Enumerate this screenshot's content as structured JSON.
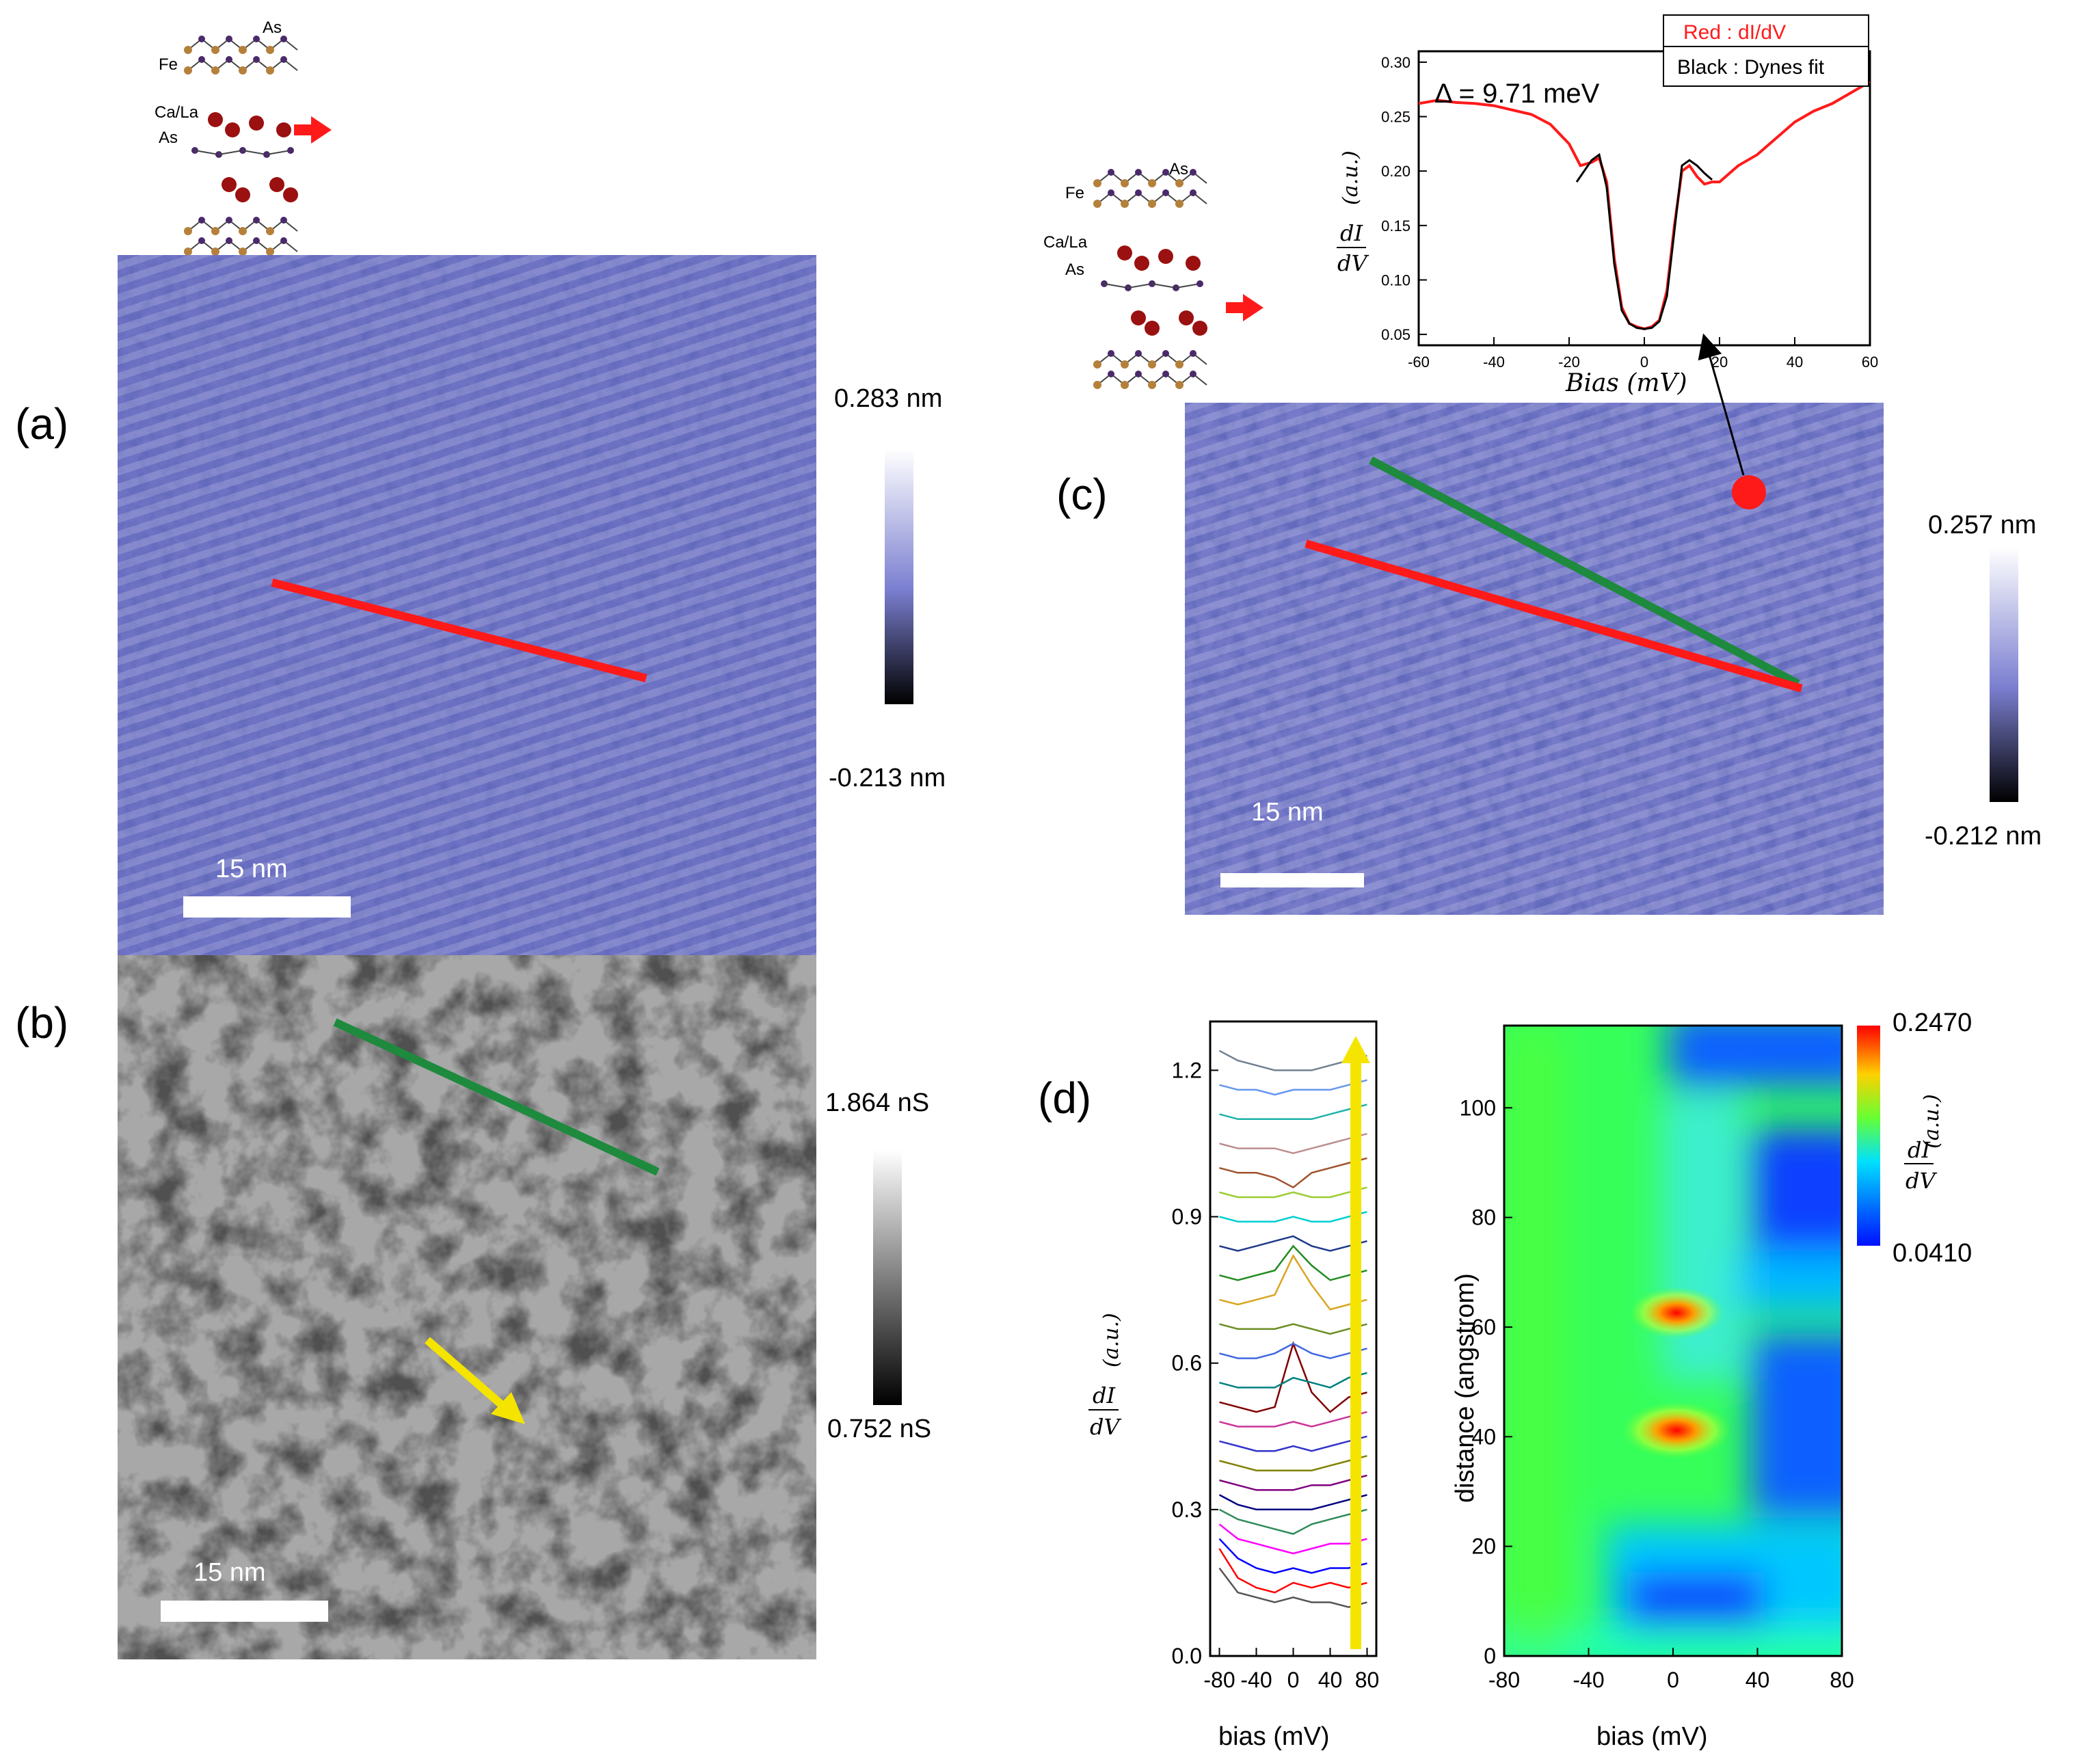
{
  "panels": {
    "a": {
      "label": "(a)",
      "cb_max": "0.283  nm",
      "cb_min": "-0.213  nm",
      "scale": "15  nm"
    },
    "b": {
      "label": "(b)",
      "cb_max": "1.864  nS",
      "cb_min": "0.752  nS",
      "scale": "15  nm"
    },
    "c": {
      "label": "(c)",
      "cb_max": "0.257  nm",
      "cb_min": "-0.212  nm",
      "scale": "15 nm"
    },
    "d": {
      "label": "(d)"
    }
  },
  "crystal": {
    "fe": "Fe",
    "as_top": "As",
    "cala": "Ca/La",
    "as_mid": "As"
  },
  "colors": {
    "topo": "#6f73c4",
    "red_line": "#ff1a1a",
    "green_line": "#1e8a3e",
    "yellow_arrow": "#f5e400",
    "cmap_low": "#1030ff",
    "cmap_high": "#ff1010"
  },
  "inset": {
    "legend_red": "Red : dI/dV",
    "legend_black": "Black : Dynes fit",
    "gap": "Δ = 9.71 meV",
    "ylabel_num": "dI",
    "ylabel_den": "dV",
    "ylabel_unit": "(a.u.)",
    "xlabel": "Bias (mV)"
  },
  "line_plot": {
    "ylabel_num": "dI",
    "ylabel_den": "dV",
    "ylabel_unit": "(a.u.)",
    "xlabel": "bias (mV)"
  },
  "map": {
    "ylabel": "distance (angstrom)",
    "xlabel": "bias (mV)",
    "cb_max": "0.2470",
    "cb_min": "0.0410",
    "cb_label_num": "dI",
    "cb_label_den": "dV",
    "cb_label_unit": "(a.u.)"
  },
  "chart_data": [
    {
      "type": "line",
      "xlim": [
        -60,
        60
      ],
      "ylim": [
        0.04,
        0.31
      ],
      "x_ticks": [
        -60,
        -40,
        -20,
        0,
        20,
        40,
        60
      ],
      "y_ticks": [
        0.05,
        0.1,
        0.15,
        0.2,
        0.25,
        0.3
      ],
      "series": [
        {
          "name": "dI/dV",
          "color": "#ff1a1a",
          "x": [
            -60,
            -55,
            -50,
            -45,
            -40,
            -35,
            -30,
            -25,
            -20,
            -17,
            -14,
            -12,
            -10,
            -8,
            -6,
            -4,
            -2,
            0,
            2,
            4,
            6,
            8,
            10,
            12,
            14,
            16,
            18,
            20,
            25,
            30,
            35,
            40,
            45,
            50,
            55,
            60
          ],
          "y": [
            0.262,
            0.265,
            0.263,
            0.262,
            0.26,
            0.256,
            0.252,
            0.243,
            0.225,
            0.205,
            0.208,
            0.212,
            0.19,
            0.12,
            0.075,
            0.06,
            0.057,
            0.055,
            0.057,
            0.063,
            0.09,
            0.15,
            0.2,
            0.205,
            0.195,
            0.188,
            0.19,
            0.19,
            0.205,
            0.215,
            0.23,
            0.245,
            0.255,
            0.262,
            0.272,
            0.282
          ]
        },
        {
          "name": "Dynes fit",
          "color": "#000000",
          "x": [
            -18,
            -16,
            -14,
            -12,
            -10,
            -8,
            -6,
            -4,
            -2,
            0,
            2,
            4,
            6,
            8,
            10,
            12,
            14,
            16,
            18
          ],
          "y": [
            0.19,
            0.2,
            0.21,
            0.215,
            0.185,
            0.115,
            0.072,
            0.06,
            0.056,
            0.055,
            0.056,
            0.062,
            0.085,
            0.145,
            0.205,
            0.21,
            0.205,
            0.198,
            0.192
          ]
        }
      ]
    },
    {
      "type": "line",
      "xlim": [
        -90,
        90
      ],
      "ylim": [
        0.0,
        1.3
      ],
      "x_ticks": [
        -80,
        -40,
        0,
        40,
        80
      ],
      "y_ticks": [
        0.0,
        0.3,
        0.6,
        0.9,
        1.2
      ],
      "x": [
        -80,
        -60,
        -40,
        -20,
        0,
        20,
        40,
        60,
        80
      ],
      "series": [
        {
          "color": "#555555",
          "values": [
            0.18,
            0.13,
            0.12,
            0.11,
            0.12,
            0.11,
            0.11,
            0.1,
            0.11
          ]
        },
        {
          "color": "#ff0000",
          "values": [
            0.22,
            0.16,
            0.14,
            0.13,
            0.15,
            0.14,
            0.15,
            0.14,
            0.15
          ]
        },
        {
          "color": "#0000ff",
          "values": [
            0.24,
            0.2,
            0.18,
            0.17,
            0.18,
            0.17,
            0.18,
            0.18,
            0.19
          ]
        },
        {
          "color": "#ff00ff",
          "values": [
            0.27,
            0.24,
            0.23,
            0.22,
            0.21,
            0.22,
            0.23,
            0.23,
            0.24
          ]
        },
        {
          "color": "#2e8b57",
          "values": [
            0.3,
            0.28,
            0.27,
            0.26,
            0.25,
            0.27,
            0.28,
            0.29,
            0.3
          ]
        },
        {
          "color": "#000080",
          "values": [
            0.33,
            0.31,
            0.3,
            0.3,
            0.3,
            0.3,
            0.31,
            0.32,
            0.33
          ]
        },
        {
          "color": "#800080",
          "values": [
            0.36,
            0.35,
            0.34,
            0.34,
            0.34,
            0.35,
            0.35,
            0.36,
            0.37
          ]
        },
        {
          "color": "#808000",
          "values": [
            0.4,
            0.39,
            0.38,
            0.38,
            0.38,
            0.38,
            0.39,
            0.4,
            0.41
          ]
        },
        {
          "color": "#3333cc",
          "values": [
            0.44,
            0.43,
            0.42,
            0.42,
            0.43,
            0.42,
            0.43,
            0.44,
            0.45
          ]
        },
        {
          "color": "#cc3399",
          "values": [
            0.48,
            0.47,
            0.47,
            0.47,
            0.48,
            0.47,
            0.48,
            0.49,
            0.5
          ]
        },
        {
          "color": "#800000",
          "values": [
            0.52,
            0.51,
            0.5,
            0.51,
            0.64,
            0.54,
            0.5,
            0.53,
            0.54
          ]
        },
        {
          "color": "#008080",
          "values": [
            0.56,
            0.55,
            0.55,
            0.55,
            0.57,
            0.56,
            0.55,
            0.57,
            0.58
          ]
        },
        {
          "color": "#4169e1",
          "values": [
            0.62,
            0.61,
            0.61,
            0.62,
            0.64,
            0.62,
            0.61,
            0.62,
            0.63
          ]
        },
        {
          "color": "#6b8e23",
          "values": [
            0.68,
            0.67,
            0.67,
            0.67,
            0.68,
            0.67,
            0.66,
            0.67,
            0.68
          ]
        },
        {
          "color": "#daa520",
          "values": [
            0.73,
            0.72,
            0.73,
            0.74,
            0.82,
            0.76,
            0.71,
            0.72,
            0.73
          ]
        },
        {
          "color": "#228b22",
          "values": [
            0.78,
            0.77,
            0.78,
            0.79,
            0.84,
            0.8,
            0.77,
            0.78,
            0.79
          ]
        },
        {
          "color": "#1e3a8a",
          "values": [
            0.84,
            0.83,
            0.84,
            0.85,
            0.86,
            0.84,
            0.83,
            0.84,
            0.85
          ]
        },
        {
          "color": "#00ced1",
          "values": [
            0.9,
            0.89,
            0.89,
            0.89,
            0.9,
            0.89,
            0.89,
            0.9,
            0.91
          ]
        },
        {
          "color": "#9acd32",
          "values": [
            0.95,
            0.94,
            0.94,
            0.94,
            0.95,
            0.94,
            0.94,
            0.95,
            0.96
          ]
        },
        {
          "color": "#a0522d",
          "values": [
            1.0,
            0.99,
            0.99,
            0.98,
            0.96,
            0.99,
            1.0,
            1.01,
            1.02
          ]
        },
        {
          "color": "#bc8f8f",
          "values": [
            1.05,
            1.04,
            1.04,
            1.04,
            1.03,
            1.04,
            1.05,
            1.06,
            1.07
          ]
        },
        {
          "color": "#20b2aa",
          "values": [
            1.11,
            1.1,
            1.1,
            1.1,
            1.1,
            1.1,
            1.11,
            1.12,
            1.13
          ]
        },
        {
          "color": "#6495ed",
          "values": [
            1.17,
            1.16,
            1.16,
            1.15,
            1.16,
            1.16,
            1.16,
            1.17,
            1.18
          ]
        },
        {
          "color": "#708090",
          "values": [
            1.24,
            1.22,
            1.21,
            1.2,
            1.2,
            1.2,
            1.21,
            1.22,
            1.23
          ]
        }
      ]
    },
    {
      "type": "heatmap",
      "xlim": [
        -80,
        80
      ],
      "ylim": [
        0,
        115
      ],
      "x_ticks": [
        -80,
        -40,
        0,
        40,
        80
      ],
      "y_ticks": [
        0,
        20,
        40,
        60,
        80,
        100
      ],
      "zlim": [
        0.041,
        0.247
      ],
      "peaks": [
        {
          "x": 0,
          "y": 41,
          "value": 0.247
        },
        {
          "x": 0,
          "y": 63,
          "value": 0.24
        }
      ]
    }
  ]
}
